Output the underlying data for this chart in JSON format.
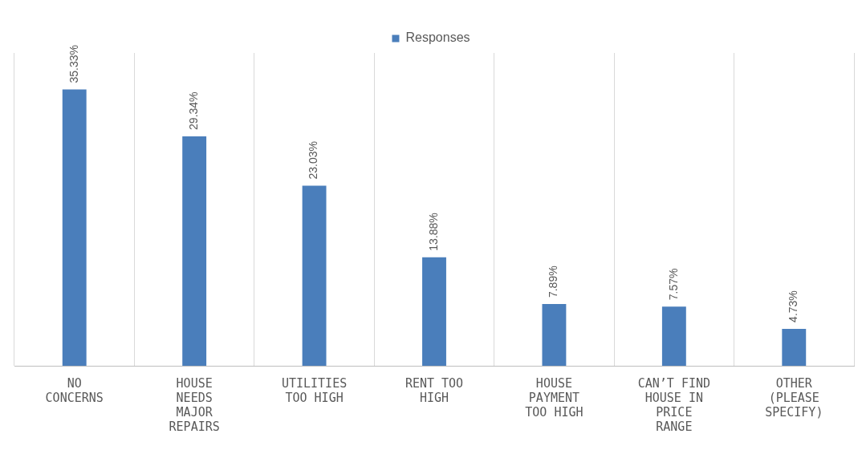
{
  "chart_data": {
    "type": "bar",
    "categories": [
      "NO CONCERNS",
      "HOUSE NEEDS MAJOR REPAIRS",
      "UTILITIES TOO HIGH",
      "RENT TOO HIGH",
      "HOUSE PAYMENT TOO HIGH",
      "CAN’T FIND HOUSE IN PRICE RANGE",
      "OTHER (PLEASE SPECIFY)"
    ],
    "series": [
      {
        "name": "Responses",
        "color": "#4a7ebb",
        "values": [
          35.33,
          29.34,
          23.03,
          13.88,
          7.89,
          7.57,
          4.73
        ],
        "value_labels": [
          "35.33%",
          "29.34%",
          "23.03%",
          "13.88%",
          "7.89%",
          "7.57%",
          "4.73%"
        ]
      }
    ],
    "grid": "x",
    "legend": "top",
    "tick_labels": "x"
  }
}
